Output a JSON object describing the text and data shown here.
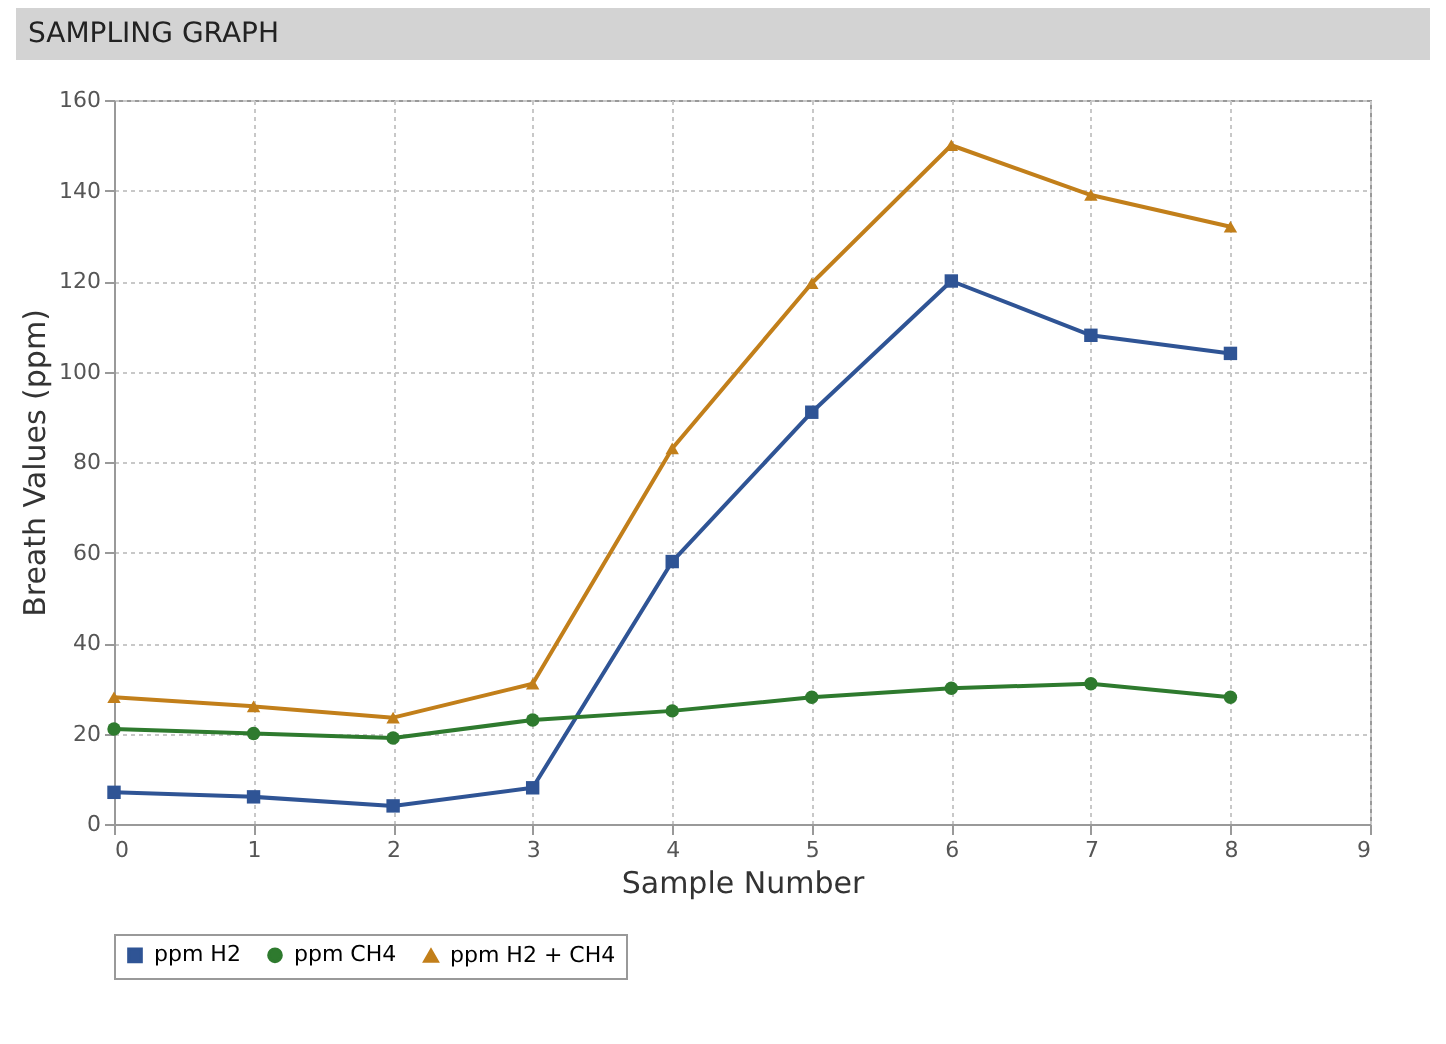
{
  "chart_data": {
    "type": "line",
    "title": "SAMPLING GRAPH",
    "xlabel": "Sample Number",
    "ylabel": "Breath Values (ppm)",
    "x": [
      0,
      1,
      2,
      3,
      4,
      5,
      6,
      7,
      8
    ],
    "series": [
      {
        "name": "ppm H2",
        "color": "#2f5495",
        "marker": "square",
        "values": [
          7,
          6,
          4,
          8,
          58,
          91,
          120,
          108,
          104
        ]
      },
      {
        "name": "ppm CH4",
        "color": "#2e7a2e",
        "marker": "circle",
        "values": [
          21,
          20,
          19,
          23,
          25,
          28,
          30,
          31,
          28
        ]
      },
      {
        "name": "ppm H2 + CH4",
        "color": "#c27f1a",
        "marker": "triangle",
        "values": [
          28,
          26,
          23.5,
          31,
          83,
          119.5,
          150,
          139,
          132
        ]
      }
    ],
    "xlim": [
      0,
      9
    ],
    "xticks": [
      0,
      1,
      2,
      3,
      4,
      5,
      6,
      7,
      8,
      9
    ],
    "ylim": [
      0,
      160
    ],
    "yticks": [
      0,
      20,
      40,
      60,
      80,
      100,
      120,
      140,
      160
    ],
    "grid": true,
    "legend": "bottom",
    "line_style": "solid"
  }
}
